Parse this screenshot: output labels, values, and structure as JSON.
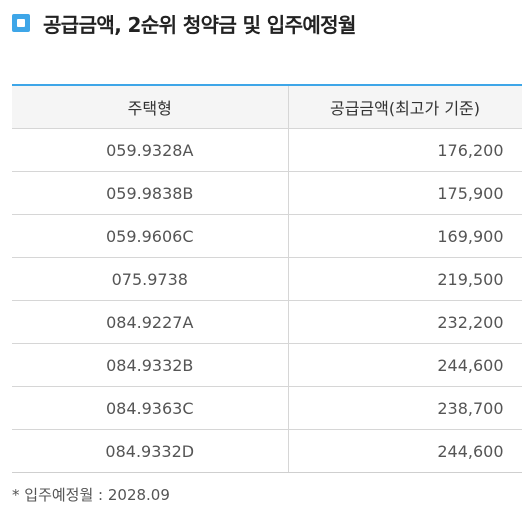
{
  "heading": {
    "icon": "square-bullet-icon",
    "title": "공급금액, 2순위 청약금 및 입주예정월"
  },
  "table": {
    "columns": [
      "주택형",
      "공급금액(최고가 기준)"
    ],
    "rows": [
      {
        "type": "059.9328A",
        "price": "176,200"
      },
      {
        "type": "059.9838B",
        "price": "175,900"
      },
      {
        "type": "059.9606C",
        "price": "169,900"
      },
      {
        "type": "075.9738",
        "price": "219,500"
      },
      {
        "type": "084.9227A",
        "price": "232,200"
      },
      {
        "type": "084.9332B",
        "price": "244,600"
      },
      {
        "type": "084.9363C",
        "price": "238,700"
      },
      {
        "type": "084.9332D",
        "price": "244,600"
      }
    ]
  },
  "footnote": "* 입주예정월 : 2028.09",
  "colors": {
    "accent": "#3ea6e8",
    "header_bg": "#f5f5f5",
    "border": "#d6d6d6"
  }
}
